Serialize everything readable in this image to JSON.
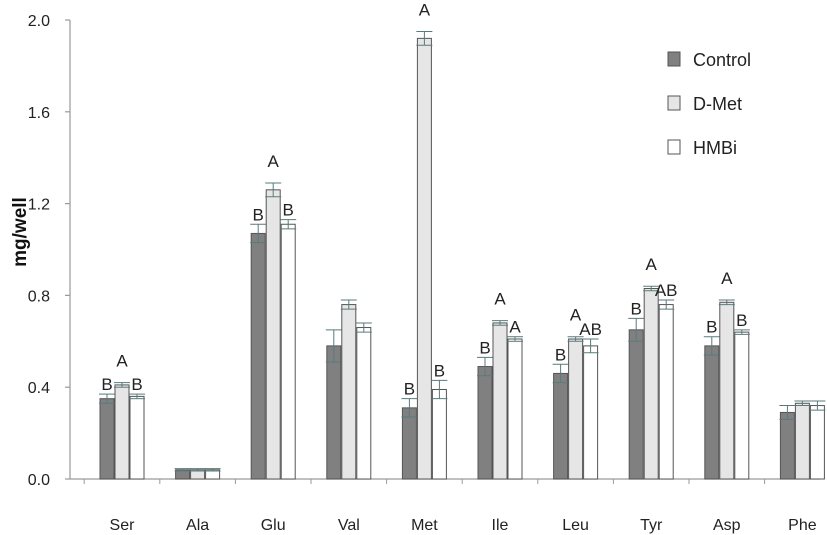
{
  "chart_data": {
    "type": "bar",
    "title": "",
    "xlabel": "",
    "ylabel": "mg/well",
    "ylim": [
      0,
      2.0
    ],
    "yticks": [
      "0.0",
      "0.4",
      "0.8",
      "1.2",
      "1.6",
      "2.0"
    ],
    "categories": [
      "Ser",
      "Ala",
      "Glu",
      "Val",
      "Met",
      "Ile",
      "Leu",
      "Tyr",
      "Asp",
      "Phe"
    ],
    "series": [
      {
        "name": "Control",
        "color": "#808080",
        "values": [
          0.35,
          0.04,
          1.07,
          0.58,
          0.31,
          0.49,
          0.46,
          0.65,
          0.58,
          0.29
        ],
        "errors": [
          0.02,
          0.005,
          0.04,
          0.07,
          0.04,
          0.04,
          0.04,
          0.05,
          0.04,
          0.03
        ],
        "letters": [
          "B",
          "",
          "B",
          "",
          "B",
          "B",
          "B",
          "B",
          "B",
          ""
        ]
      },
      {
        "name": "D-Met",
        "color": "#e6e6e6",
        "values": [
          0.41,
          0.04,
          1.26,
          0.76,
          1.92,
          0.68,
          0.61,
          0.83,
          0.77,
          0.33
        ],
        "errors": [
          0.01,
          0.005,
          0.03,
          0.02,
          0.03,
          0.01,
          0.01,
          0.01,
          0.01,
          0.01
        ],
        "letters": [
          "A",
          "",
          "A",
          "",
          "A",
          "A",
          "A",
          "A",
          "A",
          ""
        ]
      },
      {
        "name": "HMBi",
        "color": "#ffffff",
        "values": [
          0.36,
          0.04,
          1.11,
          0.66,
          0.39,
          0.61,
          0.58,
          0.76,
          0.64,
          0.32
        ],
        "errors": [
          0.01,
          0.005,
          0.02,
          0.02,
          0.04,
          0.01,
          0.03,
          0.02,
          0.01,
          0.02
        ],
        "letters": [
          "B",
          "",
          "B",
          "",
          "B",
          "A",
          "AB",
          "AB",
          "B",
          ""
        ]
      }
    ],
    "legend_position": "top-right",
    "grid": false
  }
}
